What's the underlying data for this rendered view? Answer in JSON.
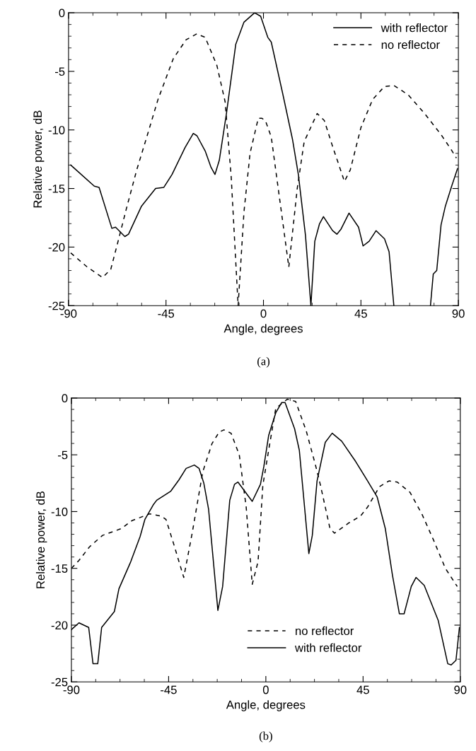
{
  "chart_data": [
    {
      "type": "line",
      "xlabel": "Angle, degrees",
      "ylabel": "Relative power, dB",
      "xlim": [
        -90,
        90
      ],
      "ylim": [
        -25,
        0
      ],
      "xticks": [
        -90,
        -45,
        0,
        45,
        90
      ],
      "yticks": [
        -25,
        -20,
        -15,
        -10,
        -5,
        0
      ],
      "grid": false,
      "legend": "top right",
      "marker": "none",
      "annotations": [
        "(a)"
      ],
      "series": [
        {
          "name": "with reflector",
          "color": "#000000",
          "line_style": "solid",
          "x": [
            -89,
            -78.1,
            -75.9,
            -70,
            -68.3,
            -64,
            -62.3,
            -56.3,
            -49.8,
            -46,
            -42.2,
            -36.2,
            -32.4,
            -30.7,
            -26.9,
            -24.2,
            -22.4,
            -20.4,
            -17.1,
            -12.8,
            -9,
            -4.1,
            -1.3,
            2.0,
            3.6,
            9,
            13.4,
            16.1,
            19.4,
            21.9,
            23.7,
            25.9,
            27.7,
            31.9,
            33.9,
            35.7,
            39.5,
            43.9,
            46,
            48.8,
            52,
            55.9,
            58,
            60.2,
            68,
            77.1,
            78.4,
            80,
            82,
            84,
            86.9,
            89.6
          ],
          "values": [
            -13.0,
            -14.8,
            -14.9,
            -18.4,
            -18.3,
            -19.1,
            -18.9,
            -16.5,
            -15.0,
            -14.9,
            -13.8,
            -11.5,
            -10.3,
            -10.5,
            -11.8,
            -13.2,
            -13.8,
            -12.6,
            -8.6,
            -2.7,
            -0.8,
            0,
            -0.3,
            -2.1,
            -2.5,
            -7.0,
            -10.8,
            -13.8,
            -19.0,
            -25,
            -19.5,
            -18.0,
            -17.4,
            -18.6,
            -18.9,
            -18.5,
            -17.1,
            -18.3,
            -19.9,
            -19.5,
            -18.6,
            -19.3,
            -20.4,
            -25,
            null,
            -25,
            -22.3,
            -22.0,
            -18.1,
            -16.5,
            -14.8,
            -13.3
          ]
        },
        {
          "name": "no reflector",
          "color": "#000000",
          "line_style": "dashed",
          "x": [
            -89,
            -85.8,
            -81.4,
            -74.3,
            -70.5,
            -66.7,
            -63.4,
            -58.5,
            -54.2,
            -48.7,
            -41.6,
            -35.7,
            -30.8,
            -26.9,
            -21.5,
            -17.7,
            -14.9,
            -11.7,
            -9,
            -6.2,
            -2.4,
            -0.8,
            0.9,
            3.6,
            7.4,
            11.7,
            15.6,
            18.8,
            24.8,
            28.1,
            31.9,
            37.4,
            40.1,
            45,
            50.4,
            55.8,
            60.2,
            66.8,
            74.4,
            82,
            86.4,
            89.1
          ],
          "values": [
            -20.5,
            -21.0,
            -21.7,
            -22.6,
            -21.9,
            -19.2,
            -16.8,
            -13.4,
            -10.8,
            -7.4,
            -3.9,
            -2.3,
            -1.8,
            -2.1,
            -4.5,
            -7.6,
            -14.0,
            -25,
            -17.0,
            -12.0,
            -9.0,
            -9.0,
            -9.2,
            -10.6,
            -15.8,
            -21.7,
            -15.0,
            -11.0,
            -8.6,
            -9.2,
            -11.4,
            -14.4,
            -13.4,
            -9.8,
            -7.4,
            -6.3,
            -6.2,
            -7.0,
            -8.6,
            -10.4,
            -11.6,
            -12.4
          ]
        }
      ]
    },
    {
      "type": "line",
      "xlabel": "Angle, degrees",
      "ylabel": "Relative power, dB",
      "xlim": [
        -90,
        90
      ],
      "ylim": [
        -25,
        0
      ],
      "xticks": [
        -90,
        -45,
        0,
        45,
        90
      ],
      "yticks": [
        -25,
        -20,
        -15,
        -10,
        -5,
        0
      ],
      "grid": false,
      "legend": "bottom",
      "marker": "none",
      "annotations": [
        "(b)"
      ],
      "series": [
        {
          "name": "no reflector",
          "color": "#000000",
          "line_style": "dashed",
          "x": [
            -90,
            -86.5,
            -81.6,
            -75.6,
            -66.9,
            -62,
            -53.8,
            -48.3,
            -46.2,
            -42.9,
            -38,
            -34.1,
            -29.2,
            -24.9,
            -21.6,
            -19.4,
            -16.1,
            -12.3,
            -9.1,
            -6.3,
            -3.6,
            -1.4,
            1.3,
            4.6,
            10,
            13.8,
            18.7,
            23.1,
            25.3,
            29.7,
            31.8,
            38.4,
            43.8,
            47.1,
            52.6,
            57,
            60.8,
            66.7,
            72.2,
            77.6,
            83.1,
            88.6
          ],
          "values": [
            -15.0,
            -14.3,
            -13.1,
            -12.1,
            -11.5,
            -10.8,
            -10.2,
            -10.4,
            -10.7,
            -12.7,
            -15.8,
            -11.9,
            -6.5,
            -4.0,
            -3.0,
            -2.8,
            -3.1,
            -5.0,
            -9.6,
            -16.4,
            -14.4,
            -7.7,
            -4.6,
            -0.9,
            -0.1,
            -0.3,
            -2.9,
            -6.0,
            -7.7,
            -11.5,
            -11.9,
            -11.0,
            -10.4,
            -9.6,
            -7.8,
            -7.3,
            -7.4,
            -8.3,
            -10.2,
            -12.5,
            -15.0,
            -16.6
          ]
        },
        {
          "name": "with reflector",
          "color": "#000000",
          "line_style": "solid",
          "x": [
            -90,
            -86.5,
            -82,
            -80,
            -77.8,
            -76,
            -70.1,
            -68,
            -62.5,
            -58.2,
            -56,
            -52.1,
            -50.5,
            -44,
            -40.2,
            -36.9,
            -33.1,
            -30.9,
            -28.7,
            -26.5,
            -22.2,
            -20,
            -16.7,
            -14.5,
            -12.9,
            -6.3,
            -2.5,
            -0.9,
            1.3,
            4.6,
            7.3,
            8.9,
            13.3,
            15.5,
            19.9,
            21.5,
            23.7,
            27.5,
            30.7,
            35.1,
            41.6,
            47.1,
            51.5,
            55.3,
            58.6,
            61.8,
            64,
            67.3,
            69.5,
            73.3,
            79.8,
            84.2,
            85.8,
            88,
            89.6
          ],
          "values": [
            -20.4,
            -19.8,
            -20.2,
            -23.4,
            -23.4,
            -20.2,
            -18.8,
            -16.8,
            -14.4,
            -12.2,
            -10.7,
            -9.4,
            -9.0,
            -8.2,
            -7.2,
            -6.2,
            -5.9,
            -6.2,
            -7.5,
            -9.8,
            -18.7,
            -16.6,
            -9.0,
            -7.6,
            -7.4,
            -9.1,
            -7.6,
            -6.0,
            -3.3,
            -1.3,
            -0.4,
            -0.4,
            -2.7,
            -4.6,
            -13.7,
            -12.1,
            -7.3,
            -3.9,
            -3.1,
            -3.8,
            -5.6,
            -7.3,
            -8.7,
            -11.5,
            -15.6,
            -19.0,
            -19.0,
            -16.6,
            -15.8,
            -16.5,
            -19.6,
            -23.4,
            -23.5,
            -23.1,
            -20.2
          ]
        }
      ]
    }
  ]
}
